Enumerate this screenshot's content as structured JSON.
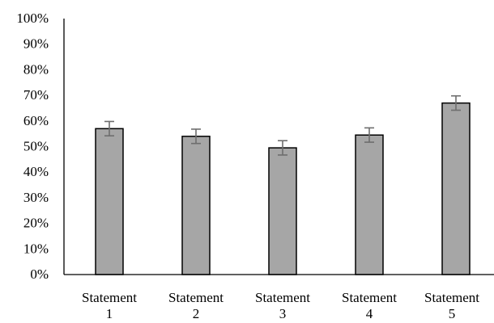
{
  "chart_data": {
    "type": "bar",
    "categories": [
      [
        "Statement",
        "1"
      ],
      [
        "Statement",
        "2"
      ],
      [
        "Statement",
        "3"
      ],
      [
        "Statement",
        "4"
      ],
      [
        "Statement",
        "5"
      ]
    ],
    "values": [
      57,
      54,
      49.5,
      54.5,
      67
    ],
    "error": [
      2.8,
      2.8,
      2.8,
      2.8,
      2.8
    ],
    "ylim": [
      0,
      100
    ],
    "yticks": [
      0,
      10,
      20,
      30,
      40,
      50,
      60,
      70,
      80,
      90,
      100
    ],
    "ytick_labels": [
      "0%",
      "10%",
      "20%",
      "30%",
      "40%",
      "50%",
      "60%",
      "70%",
      "80%",
      "90%",
      "100%"
    ],
    "grid": false,
    "title": "",
    "xlabel": "",
    "ylabel": "",
    "colors": {
      "bar_fill": "#a6a6a6",
      "bar_stroke": "#000000",
      "error_bar": "#6e6e6e",
      "axis": "#000000"
    }
  }
}
